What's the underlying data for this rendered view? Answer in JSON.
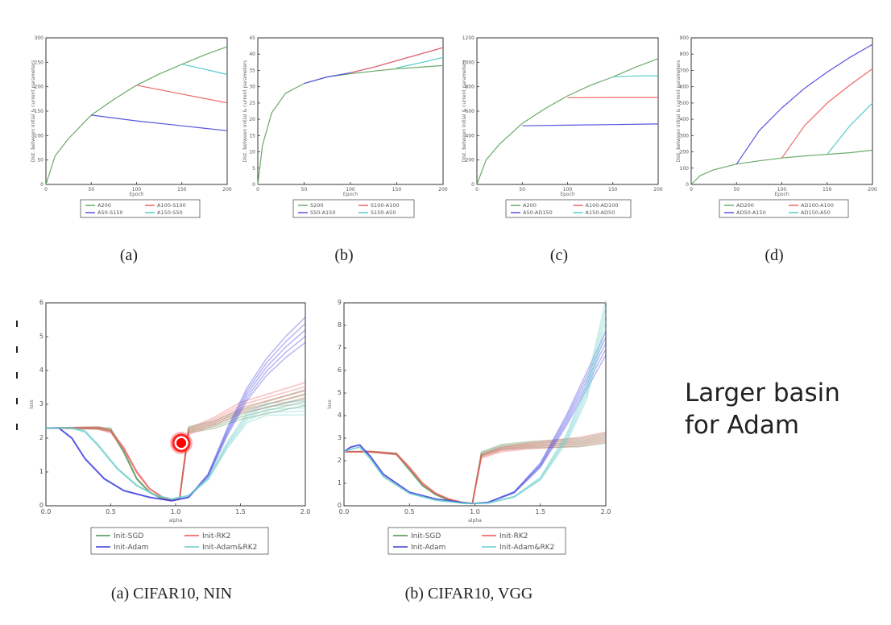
{
  "slide_note": [
    "Larger basin",
    "for Adam"
  ],
  "chart_data": [
    {
      "type": "line",
      "caption": "(a)",
      "xlabel": "Epoch",
      "ylabel": "Dist. between initial & current parameters",
      "xlim": [
        0,
        200
      ],
      "ylim": [
        0,
        300
      ],
      "xticks": [
        "0",
        "50",
        "100",
        "150",
        "200"
      ],
      "yticks": [
        "0",
        "50",
        "100",
        "150",
        "200",
        "250",
        "300"
      ],
      "legend": [
        "A200",
        "A100-S100",
        "A50-S150",
        "A150-S50"
      ],
      "series": [
        {
          "name": "A200",
          "color": "#6aaa6a",
          "x": [
            0,
            10,
            25,
            50,
            75,
            100,
            125,
            150,
            175,
            200
          ],
          "y": [
            0,
            58,
            94,
            142,
            174,
            203,
            226,
            246,
            265,
            282
          ]
        },
        {
          "name": "A50-S150",
          "color": "#5555dd",
          "x": [
            50,
            100,
            150,
            200
          ],
          "y": [
            142,
            130,
            120,
            110
          ]
        },
        {
          "name": "A100-S100",
          "color": "#ee6666",
          "x": [
            100,
            150,
            200
          ],
          "y": [
            203,
            185,
            167
          ]
        },
        {
          "name": "A150-S50",
          "color": "#55cccc",
          "x": [
            150,
            175,
            200
          ],
          "y": [
            246,
            236,
            225
          ]
        }
      ]
    },
    {
      "type": "line",
      "caption": "(b)",
      "xlabel": "Epoch",
      "ylabel": "Dist. between initial & current parameters",
      "xlim": [
        0,
        200
      ],
      "ylim": [
        0,
        45
      ],
      "xticks": [
        "0",
        "50",
        "100",
        "150",
        "200"
      ],
      "yticks": [
        "0",
        "5",
        "10",
        "15",
        "20",
        "25",
        "30",
        "35",
        "40",
        "45"
      ],
      "legend": [
        "S200",
        "S100-A100",
        "S50-A150",
        "S150-A50"
      ],
      "series": [
        {
          "name": "S200",
          "color": "#6aaa6a",
          "x": [
            0,
            5,
            15,
            30,
            50,
            75,
            100,
            125,
            150,
            175,
            200
          ],
          "y": [
            0,
            12,
            22,
            28,
            31,
            33,
            34,
            34.8,
            35.5,
            36,
            36.5
          ]
        },
        {
          "name": "S50-A150",
          "color": "#5555dd",
          "x": [
            50,
            75,
            100,
            125,
            150,
            175,
            200
          ],
          "y": [
            31,
            33,
            34.3,
            36,
            38,
            40,
            42
          ]
        },
        {
          "name": "S100-A100",
          "color": "#ee6666",
          "x": [
            100,
            125,
            150,
            175,
            200
          ],
          "y": [
            34.3,
            36,
            38,
            40,
            42
          ]
        },
        {
          "name": "S150-A50",
          "color": "#55cccc",
          "x": [
            150,
            175,
            200
          ],
          "y": [
            35.8,
            37.3,
            39
          ]
        }
      ]
    },
    {
      "type": "line",
      "caption": "(c)",
      "xlabel": "Epoch",
      "ylabel": "Dist. between initial & current parameters",
      "xlim": [
        0,
        200
      ],
      "ylim": [
        0,
        1200
      ],
      "xticks": [
        "0",
        "50",
        "100",
        "150",
        "200"
      ],
      "yticks": [
        "0",
        "200",
        "400",
        "600",
        "800",
        "1000",
        "1200"
      ],
      "legend": [
        "A200",
        "A100-AD100",
        "A50-AD150",
        "A150-AD50"
      ],
      "series": [
        {
          "name": "A200",
          "color": "#6aaa6a",
          "x": [
            0,
            10,
            25,
            50,
            75,
            100,
            125,
            150,
            175,
            200
          ],
          "y": [
            0,
            200,
            330,
            500,
            620,
            725,
            810,
            880,
            960,
            1030
          ]
        },
        {
          "name": "A50-AD150",
          "color": "#5555dd",
          "x": [
            50,
            100,
            150,
            200
          ],
          "y": [
            480,
            485,
            490,
            495
          ]
        },
        {
          "name": "A100-AD100",
          "color": "#ee6666",
          "x": [
            100,
            150,
            200
          ],
          "y": [
            710,
            712,
            712
          ]
        },
        {
          "name": "A150-AD50",
          "color": "#55cccc",
          "x": [
            150,
            175,
            200
          ],
          "y": [
            880,
            888,
            890
          ]
        }
      ]
    },
    {
      "type": "line",
      "caption": "(d)",
      "xlabel": "Epoch",
      "ylabel": "Dist. between initial & current parameters",
      "xlim": [
        0,
        200
      ],
      "ylim": [
        0,
        900
      ],
      "xticks": [
        "0",
        "50",
        "100",
        "150",
        "200"
      ],
      "yticks": [
        "0",
        "100",
        "200",
        "300",
        "400",
        "500",
        "600",
        "700",
        "800",
        "900"
      ],
      "legend": [
        "AD200",
        "AD100-A100",
        "AD50-A150",
        "AD150-A50"
      ],
      "series": [
        {
          "name": "AD200",
          "color": "#6aaa6a",
          "x": [
            0,
            10,
            25,
            50,
            75,
            100,
            125,
            150,
            175,
            200
          ],
          "y": [
            0,
            55,
            90,
            125,
            145,
            162,
            175,
            185,
            195,
            210
          ]
        },
        {
          "name": "AD50-A150",
          "color": "#5555dd",
          "x": [
            50,
            75,
            100,
            125,
            150,
            175,
            200
          ],
          "y": [
            125,
            330,
            470,
            590,
            690,
            780,
            860
          ]
        },
        {
          "name": "AD100-A100",
          "color": "#ee6666",
          "x": [
            100,
            125,
            150,
            175,
            200
          ],
          "y": [
            162,
            360,
            500,
            610,
            710
          ]
        },
        {
          "name": "AD150-A50",
          "color": "#55cccc",
          "x": [
            150,
            175,
            200
          ],
          "y": [
            185,
            360,
            500
          ]
        }
      ]
    },
    {
      "type": "line",
      "caption": "(a) CIFAR10, NIN",
      "xlabel": "alpha",
      "ylabel": "loss",
      "xlim": [
        0,
        2
      ],
      "ylim": [
        0,
        6
      ],
      "xticks": [
        "0.0",
        "0.5",
        "1.0",
        "1.5",
        "2.0"
      ],
      "yticks": [
        "0",
        "1",
        "2",
        "3",
        "4",
        "5",
        "6"
      ],
      "legend": [
        "Init-SGD",
        "Init-RK2",
        "Init-Adam",
        "Init-Adam&RK2"
      ],
      "series": [
        {
          "name": "Init-SGD",
          "color": "#4f8f4f",
          "x": [
            0,
            0.2,
            0.4,
            0.5,
            0.6,
            0.7,
            0.8,
            0.9,
            0.97,
            1.03,
            1.1,
            1.3,
            1.5,
            1.7,
            2.0
          ],
          "y": [
            2.3,
            2.3,
            2.3,
            2.25,
            1.6,
            0.8,
            0.4,
            0.2,
            0.15,
            0.2,
            2.25,
            2.4,
            2.7,
            2.9,
            3.2
          ]
        },
        {
          "name": "Init-RK2",
          "color": "#ee5555",
          "x": [
            0,
            0.2,
            0.4,
            0.5,
            0.6,
            0.7,
            0.8,
            0.9,
            0.97,
            1.03,
            1.1,
            1.3,
            1.5,
            1.7,
            2.0
          ],
          "y": [
            2.3,
            2.3,
            2.3,
            2.2,
            1.7,
            1.0,
            0.5,
            0.25,
            0.15,
            0.2,
            2.2,
            2.5,
            2.9,
            3.1,
            3.4
          ]
        },
        {
          "name": "Init-Adam",
          "color": "#3a3ae0",
          "x": [
            0,
            0.1,
            0.2,
            0.3,
            0.45,
            0.6,
            0.8,
            0.97,
            1.1,
            1.25,
            1.4,
            1.55,
            1.7,
            1.85,
            2.0
          ],
          "y": [
            2.3,
            2.3,
            2.0,
            1.4,
            0.8,
            0.45,
            0.25,
            0.15,
            0.25,
            0.9,
            2.2,
            3.3,
            4.1,
            4.7,
            5.2
          ]
        },
        {
          "name": "Init-Adam&RK2",
          "color": "#66cccc",
          "x": [
            0,
            0.2,
            0.3,
            0.4,
            0.55,
            0.7,
            0.85,
            0.97,
            1.1,
            1.25,
            1.4,
            1.55,
            1.7,
            2.0
          ],
          "y": [
            2.3,
            2.3,
            2.2,
            1.8,
            1.1,
            0.6,
            0.3,
            0.2,
            0.3,
            0.8,
            1.8,
            2.6,
            2.85,
            2.9
          ]
        }
      ]
    },
    {
      "type": "line",
      "caption": "(b) CIFAR10, VGG",
      "xlabel": "alpha",
      "ylabel": "loss",
      "xlim": [
        0,
        2
      ],
      "ylim": [
        0,
        9
      ],
      "xticks": [
        "0.0",
        "0.5",
        "1.0",
        "1.5",
        "2.0"
      ],
      "yticks": [
        "0",
        "1",
        "2",
        "3",
        "4",
        "5",
        "6",
        "7",
        "8",
        "9"
      ],
      "legend": [
        "Init-SGD",
        "Init-RK2",
        "Init-Adam",
        "Init-Adam&RK2"
      ],
      "series": [
        {
          "name": "Init-SGD",
          "color": "#4f8f4f",
          "x": [
            0,
            0.2,
            0.4,
            0.5,
            0.6,
            0.7,
            0.8,
            0.9,
            0.98,
            1.05,
            1.2,
            1.4,
            1.6,
            1.8,
            2.0
          ],
          "y": [
            2.4,
            2.4,
            2.3,
            1.6,
            0.9,
            0.5,
            0.25,
            0.12,
            0.1,
            2.3,
            2.6,
            2.7,
            2.75,
            2.8,
            3.0
          ]
        },
        {
          "name": "Init-RK2",
          "color": "#ee5555",
          "x": [
            0,
            0.2,
            0.4,
            0.5,
            0.6,
            0.7,
            0.8,
            0.9,
            0.98,
            1.05,
            1.2,
            1.4,
            1.6,
            1.8,
            2.0
          ],
          "y": [
            2.4,
            2.4,
            2.3,
            1.7,
            1.0,
            0.55,
            0.3,
            0.15,
            0.1,
            2.2,
            2.5,
            2.65,
            2.75,
            2.85,
            3.05
          ]
        },
        {
          "name": "Init-Adam",
          "color": "#3a3ae0",
          "x": [
            0,
            0.05,
            0.12,
            0.2,
            0.3,
            0.5,
            0.7,
            0.9,
            0.98,
            1.1,
            1.3,
            1.5,
            1.7,
            1.85,
            2.0
          ],
          "y": [
            2.4,
            2.6,
            2.7,
            2.2,
            1.4,
            0.6,
            0.3,
            0.15,
            0.1,
            0.15,
            0.6,
            1.8,
            3.8,
            5.5,
            7.2
          ]
        },
        {
          "name": "Init-Adam&RK2",
          "color": "#66cccc",
          "x": [
            0,
            0.05,
            0.12,
            0.2,
            0.3,
            0.5,
            0.7,
            0.9,
            0.98,
            1.1,
            1.3,
            1.5,
            1.7,
            1.85,
            2.0
          ],
          "y": [
            2.4,
            2.5,
            2.6,
            2.1,
            1.3,
            0.55,
            0.25,
            0.12,
            0.1,
            0.12,
            0.4,
            1.2,
            3.0,
            5.0,
            8.5
          ]
        }
      ]
    }
  ]
}
